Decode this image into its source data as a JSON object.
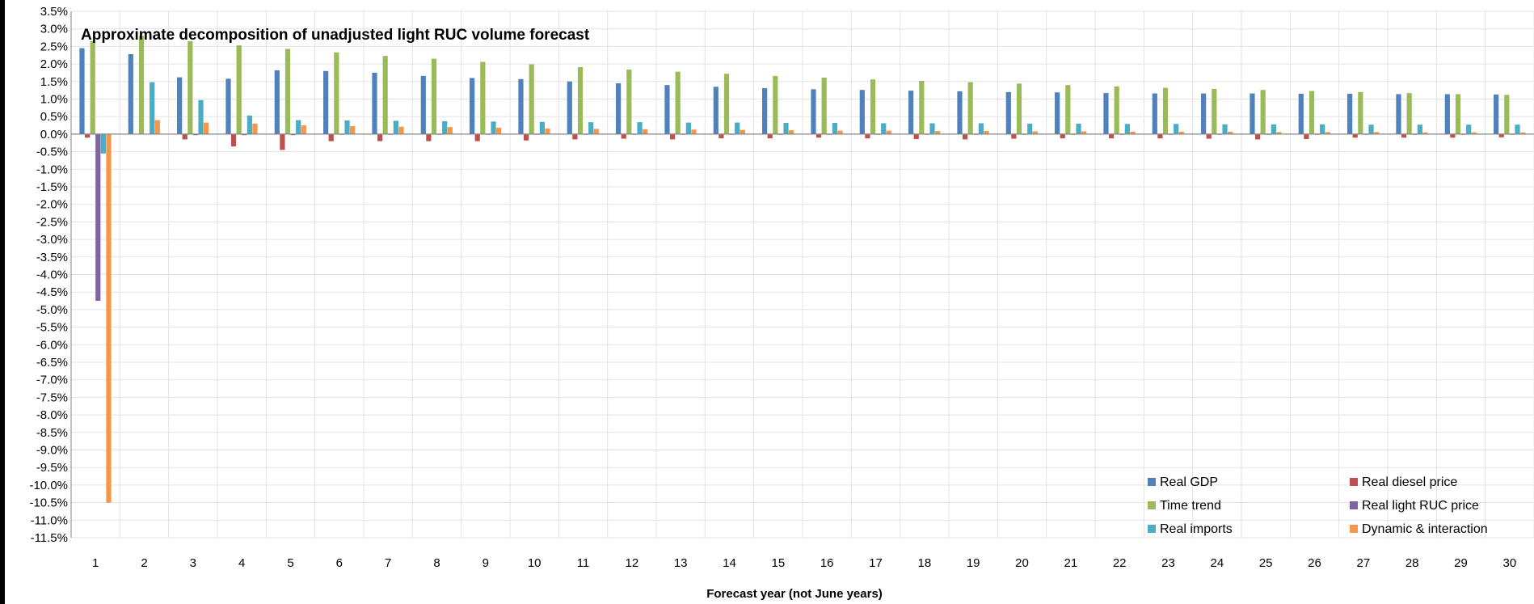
{
  "chart_data": {
    "type": "bar",
    "title": "Approximate decomposition of unadjusted light RUC volume forecast",
    "xlabel": "Forecast year (not June years)",
    "ylabel": "",
    "categories": [
      "1",
      "2",
      "3",
      "4",
      "5",
      "6",
      "7",
      "8",
      "9",
      "10",
      "11",
      "12",
      "13",
      "14",
      "15",
      "16",
      "17",
      "18",
      "19",
      "20",
      "21",
      "22",
      "23",
      "24",
      "25",
      "26",
      "27",
      "28",
      "29",
      "30"
    ],
    "ylim": [
      -11.5,
      3.5
    ],
    "ytick_step": 0.5,
    "ytick_format": "percent_1dp",
    "grid": true,
    "legend_position": "bottom-right",
    "series": [
      {
        "name": "Real GDP",
        "color": "#4F81BD",
        "values": [
          2.45,
          2.28,
          1.62,
          1.58,
          1.82,
          1.8,
          1.75,
          1.66,
          1.6,
          1.57,
          1.5,
          1.45,
          1.4,
          1.35,
          1.31,
          1.28,
          1.26,
          1.24,
          1.22,
          1.2,
          1.19,
          1.17,
          1.16,
          1.16,
          1.16,
          1.15,
          1.15,
          1.14,
          1.14,
          1.13
        ]
      },
      {
        "name": "Real diesel price",
        "color": "#C0504D",
        "values": [
          -0.1,
          0.0,
          -0.15,
          -0.35,
          -0.45,
          -0.2,
          -0.2,
          -0.2,
          -0.2,
          -0.18,
          -0.15,
          -0.13,
          -0.15,
          -0.12,
          -0.12,
          -0.1,
          -0.12,
          -0.14,
          -0.15,
          -0.13,
          -0.12,
          -0.12,
          -0.12,
          -0.13,
          -0.15,
          -0.14,
          -0.1,
          -0.1,
          -0.1,
          -0.09
        ]
      },
      {
        "name": "Time trend",
        "color": "#9BBB59",
        "values": [
          2.65,
          2.8,
          2.65,
          2.53,
          2.43,
          2.33,
          2.23,
          2.15,
          2.06,
          1.99,
          1.91,
          1.84,
          1.78,
          1.72,
          1.66,
          1.61,
          1.56,
          1.52,
          1.48,
          1.44,
          1.4,
          1.36,
          1.32,
          1.29,
          1.26,
          1.23,
          1.2,
          1.17,
          1.14,
          1.12
        ]
      },
      {
        "name": "Real light RUC price",
        "color": "#8064A2",
        "values": [
          -4.75,
          0.0,
          -0.03,
          -0.03,
          -0.03,
          -0.02,
          -0.02,
          -0.02,
          -0.02,
          -0.02,
          -0.02,
          -0.02,
          -0.02,
          -0.02,
          -0.02,
          -0.02,
          -0.02,
          -0.02,
          -0.02,
          -0.02,
          -0.02,
          -0.02,
          -0.02,
          -0.02,
          -0.02,
          -0.02,
          -0.02,
          -0.02,
          -0.02,
          -0.02
        ]
      },
      {
        "name": "Real imports",
        "color": "#4BACC6",
        "values": [
          -0.55,
          1.48,
          0.97,
          0.53,
          0.4,
          0.39,
          0.38,
          0.37,
          0.36,
          0.35,
          0.34,
          0.34,
          0.33,
          0.33,
          0.32,
          0.32,
          0.31,
          0.31,
          0.31,
          0.3,
          0.3,
          0.29,
          0.29,
          0.28,
          0.28,
          0.28,
          0.27,
          0.27,
          0.27,
          0.27
        ]
      },
      {
        "name": "Dynamic & interaction",
        "color": "#F79646",
        "values": [
          -10.5,
          0.4,
          0.33,
          0.3,
          0.25,
          0.23,
          0.21,
          0.2,
          0.18,
          0.16,
          0.15,
          0.14,
          0.13,
          0.12,
          0.11,
          0.1,
          0.1,
          0.09,
          0.09,
          0.08,
          0.08,
          0.07,
          0.07,
          0.07,
          0.06,
          0.06,
          0.06,
          0.05,
          0.05,
          0.05
        ]
      }
    ]
  }
}
